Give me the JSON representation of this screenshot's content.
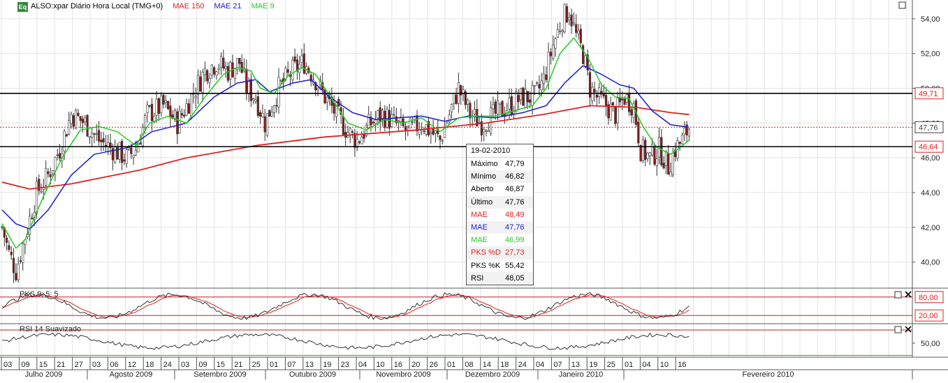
{
  "header": {
    "badge": "Eq",
    "symbol": "ALSO:xpar Diário Hora Local (TMG+0)",
    "mae150": "MAE 150",
    "mae21": "MAE 21",
    "mae9": "MAE 9",
    "colors": {
      "mae150": "#e02020",
      "mae21": "#1a1ad0",
      "mae9": "#22cc22",
      "bull": "#ffffff",
      "bear": "#8b1a1a"
    }
  },
  "price_axis": [
    "54,00",
    "52,00",
    "50,00",
    "48,00",
    "46,00",
    "44,00",
    "42,00",
    "40,00"
  ],
  "price_badges": {
    "upper": "49,71",
    "last": "47,76",
    "lower": "46,64"
  },
  "tooltip": {
    "date": "19-02-2010",
    "rows": [
      {
        "label": "Máximo",
        "value": "47,79",
        "color": "#000000"
      },
      {
        "label": "Mínimo",
        "value": "46,82",
        "color": "#000000"
      },
      {
        "label": "Aberto",
        "value": "46,87",
        "color": "#000000"
      },
      {
        "label": "Último",
        "value": "47,76",
        "color": "#000000"
      },
      {
        "label": "MAE",
        "value": "48,49",
        "color": "#e02020"
      },
      {
        "label": "MAE",
        "value": "47,76",
        "color": "#1a1ad0"
      },
      {
        "label": "MAE",
        "value": "46,99",
        "color": "#22cc22"
      },
      {
        "label": "PKS %D",
        "value": "27,73",
        "color": "#e02020"
      },
      {
        "label": "PKS %K",
        "value": "55,42",
        "color": "#000000"
      },
      {
        "label": "RSI",
        "value": "48,05",
        "color": "#000000"
      }
    ]
  },
  "stoch": {
    "title": "PKS 9; 5; 5",
    "levels": [
      "80,00",
      "20,00"
    ]
  },
  "rsi": {
    "title": "RSI 14 Suavizado",
    "level": "50,00"
  },
  "x_axis": {
    "days": [
      "03",
      "09",
      "15",
      "21",
      "27",
      "03",
      "06",
      "12",
      "18",
      "24",
      "03",
      "09",
      "15",
      "21",
      "25",
      "01",
      "07",
      "13",
      "19",
      "23",
      "04",
      "10",
      "16",
      "20",
      "26",
      "01",
      "08",
      "14",
      "18",
      "24",
      "04",
      "07",
      "13",
      "19",
      "25",
      "01",
      "04",
      "10",
      "16"
    ],
    "months": [
      "Julho 2009",
      "Agosto 2009",
      "Setembro 2009",
      "Outubro 2009",
      "Novembro 2009",
      "Dezembro 2009",
      "Janeiro 2010",
      "Fevereiro 2010"
    ]
  },
  "chart_data": {
    "type": "candlestick",
    "title": "ALSO:xpar Diário Hora Local (TMG+0)",
    "x_range": [
      "2009-07-01",
      "2010-02-19"
    ],
    "ylim": [
      38.5,
      55
    ],
    "horizontal_lines": [
      49.71,
      47.76,
      46.64
    ],
    "close_path": [
      [
        0,
        42.0
      ],
      [
        3,
        40.5
      ],
      [
        6,
        39.5
      ],
      [
        10,
        41.5
      ],
      [
        15,
        44.0
      ],
      [
        20,
        45.0
      ],
      [
        25,
        46.5
      ],
      [
        30,
        48.5
      ],
      [
        36,
        48.0
      ],
      [
        42,
        47.0
      ],
      [
        48,
        46.5
      ],
      [
        54,
        46.0
      ],
      [
        58,
        46.5
      ],
      [
        63,
        48.5
      ],
      [
        70,
        49.0
      ],
      [
        76,
        48.0
      ],
      [
        82,
        49.5
      ],
      [
        88,
        51.0
      ],
      [
        93,
        51.5
      ],
      [
        98,
        51.0
      ],
      [
        103,
        51.5
      ],
      [
        106,
        50.0
      ],
      [
        110,
        49.5
      ],
      [
        114,
        48.0
      ],
      [
        120,
        50.0
      ],
      [
        126,
        51.0
      ],
      [
        131,
        51.5
      ],
      [
        136,
        50.5
      ],
      [
        140,
        49.5
      ],
      [
        145,
        48.5
      ],
      [
        150,
        47.5
      ],
      [
        154,
        47.0
      ],
      [
        160,
        48.0
      ],
      [
        165,
        48.5
      ],
      [
        170,
        48.0
      ],
      [
        176,
        47.5
      ],
      [
        182,
        48.0
      ],
      [
        186,
        47.5
      ],
      [
        190,
        47.0
      ],
      [
        194,
        48.5
      ],
      [
        198,
        50.0
      ],
      [
        203,
        48.5
      ],
      [
        208,
        48.0
      ],
      [
        214,
        48.5
      ],
      [
        220,
        49.0
      ],
      [
        226,
        49.5
      ],
      [
        231,
        49.5
      ],
      [
        235,
        50.5
      ],
      [
        239,
        52.5
      ],
      [
        243,
        54.0
      ],
      [
        246,
        54.5
      ],
      [
        249,
        53.0
      ],
      [
        252,
        52.0
      ],
      [
        255,
        50.0
      ],
      [
        258,
        49.5
      ],
      [
        262,
        49.0
      ],
      [
        266,
        48.5
      ],
      [
        270,
        49.5
      ],
      [
        274,
        49.0
      ],
      [
        277,
        46.5
      ],
      [
        281,
        46.0
      ],
      [
        285,
        46.5
      ],
      [
        289,
        45.5
      ],
      [
        292,
        46.5
      ],
      [
        295,
        47.0
      ],
      [
        298,
        47.76
      ]
    ],
    "mae150": [
      [
        0,
        44.6
      ],
      [
        12,
        44.2
      ],
      [
        30,
        44.5
      ],
      [
        60,
        45.3
      ],
      [
        80,
        46.0
      ],
      [
        110,
        46.7
      ],
      [
        140,
        47.2
      ],
      [
        180,
        47.6
      ],
      [
        210,
        48.0
      ],
      [
        235,
        48.5
      ],
      [
        255,
        49.0
      ],
      [
        275,
        48.9
      ],
      [
        290,
        48.6
      ],
      [
        298,
        48.49
      ]
    ],
    "mae21": [
      [
        0,
        43.0
      ],
      [
        6,
        42.2
      ],
      [
        12,
        41.9
      ],
      [
        20,
        43.0
      ],
      [
        30,
        45.0
      ],
      [
        40,
        46.2
      ],
      [
        55,
        46.6
      ],
      [
        65,
        47.5
      ],
      [
        80,
        48.0
      ],
      [
        92,
        49.5
      ],
      [
        102,
        50.3
      ],
      [
        110,
        50.5
      ],
      [
        116,
        49.8
      ],
      [
        126,
        50.3
      ],
      [
        134,
        50.5
      ],
      [
        142,
        49.5
      ],
      [
        152,
        48.6
      ],
      [
        162,
        48.2
      ],
      [
        172,
        48.3
      ],
      [
        182,
        48.4
      ],
      [
        192,
        48.1
      ],
      [
        202,
        48.4
      ],
      [
        214,
        48.3
      ],
      [
        226,
        48.6
      ],
      [
        236,
        49.0
      ],
      [
        244,
        50.3
      ],
      [
        252,
        51.3
      ],
      [
        260,
        50.8
      ],
      [
        268,
        50.2
      ],
      [
        274,
        50.0
      ],
      [
        282,
        48.7
      ],
      [
        290,
        47.9
      ],
      [
        298,
        47.76
      ]
    ],
    "mae9": [
      [
        0,
        42.2
      ],
      [
        6,
        40.8
      ],
      [
        10,
        41.3
      ],
      [
        18,
        43.8
      ],
      [
        26,
        46.0
      ],
      [
        34,
        47.6
      ],
      [
        42,
        47.8
      ],
      [
        50,
        47.5
      ],
      [
        58,
        46.7
      ],
      [
        64,
        48.0
      ],
      [
        72,
        48.4
      ],
      [
        80,
        48.0
      ],
      [
        88,
        49.5
      ],
      [
        96,
        50.8
      ],
      [
        102,
        51.2
      ],
      [
        108,
        51.0
      ],
      [
        112,
        50.0
      ],
      [
        118,
        49.7
      ],
      [
        124,
        50.7
      ],
      [
        130,
        51.2
      ],
      [
        136,
        50.8
      ],
      [
        142,
        49.6
      ],
      [
        150,
        48.0
      ],
      [
        158,
        47.6
      ],
      [
        166,
        48.2
      ],
      [
        174,
        48.0
      ],
      [
        182,
        48.3
      ],
      [
        190,
        47.5
      ],
      [
        198,
        48.3
      ],
      [
        206,
        48.4
      ],
      [
        214,
        48.4
      ],
      [
        222,
        48.7
      ],
      [
        230,
        49.0
      ],
      [
        236,
        50.0
      ],
      [
        242,
        52.0
      ],
      [
        248,
        52.9
      ],
      [
        254,
        51.8
      ],
      [
        260,
        50.2
      ],
      [
        266,
        49.5
      ],
      [
        272,
        49.4
      ],
      [
        278,
        47.8
      ],
      [
        284,
        46.6
      ],
      [
        290,
        46.2
      ],
      [
        298,
        46.99
      ]
    ]
  }
}
